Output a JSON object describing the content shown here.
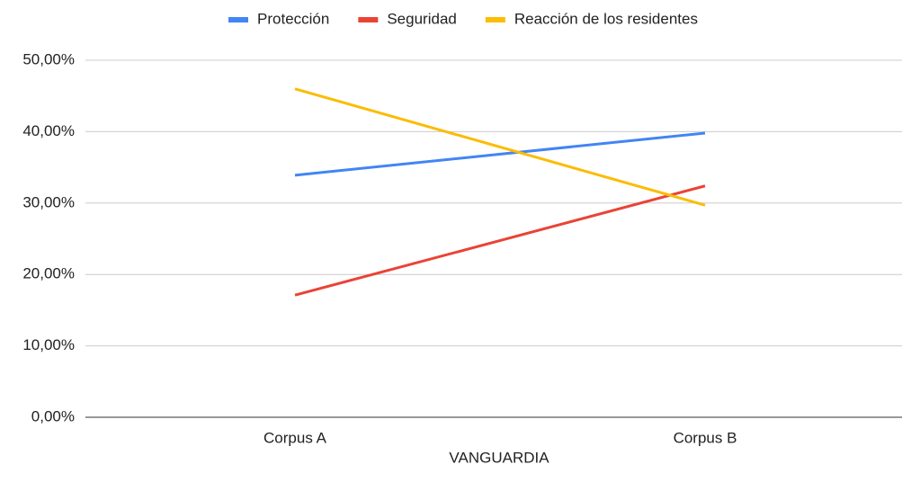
{
  "chart_data": {
    "type": "line",
    "x_label": "VANGUARDIA",
    "categories": [
      "Corpus A",
      "Corpus B"
    ],
    "series": [
      {
        "name": "Protección",
        "color": "#4285f4",
        "values": [
          33.9,
          39.8
        ]
      },
      {
        "name": "Seguridad",
        "color": "#ea4335",
        "values": [
          17.1,
          32.4
        ]
      },
      {
        "name": "Reacción de los residentes",
        "color": "#fbbc04",
        "values": [
          46.0,
          29.7
        ]
      }
    ],
    "ylim": [
      0,
      50
    ],
    "yticks": [
      {
        "value": 0,
        "label": "0,00%"
      },
      {
        "value": 10,
        "label": "10,00%"
      },
      {
        "value": 20,
        "label": "20,00%"
      },
      {
        "value": 30,
        "label": "30,00%"
      },
      {
        "value": 40,
        "label": "40,00%"
      },
      {
        "value": 50,
        "label": "50,00%"
      }
    ],
    "grid": true,
    "legend": "top"
  }
}
